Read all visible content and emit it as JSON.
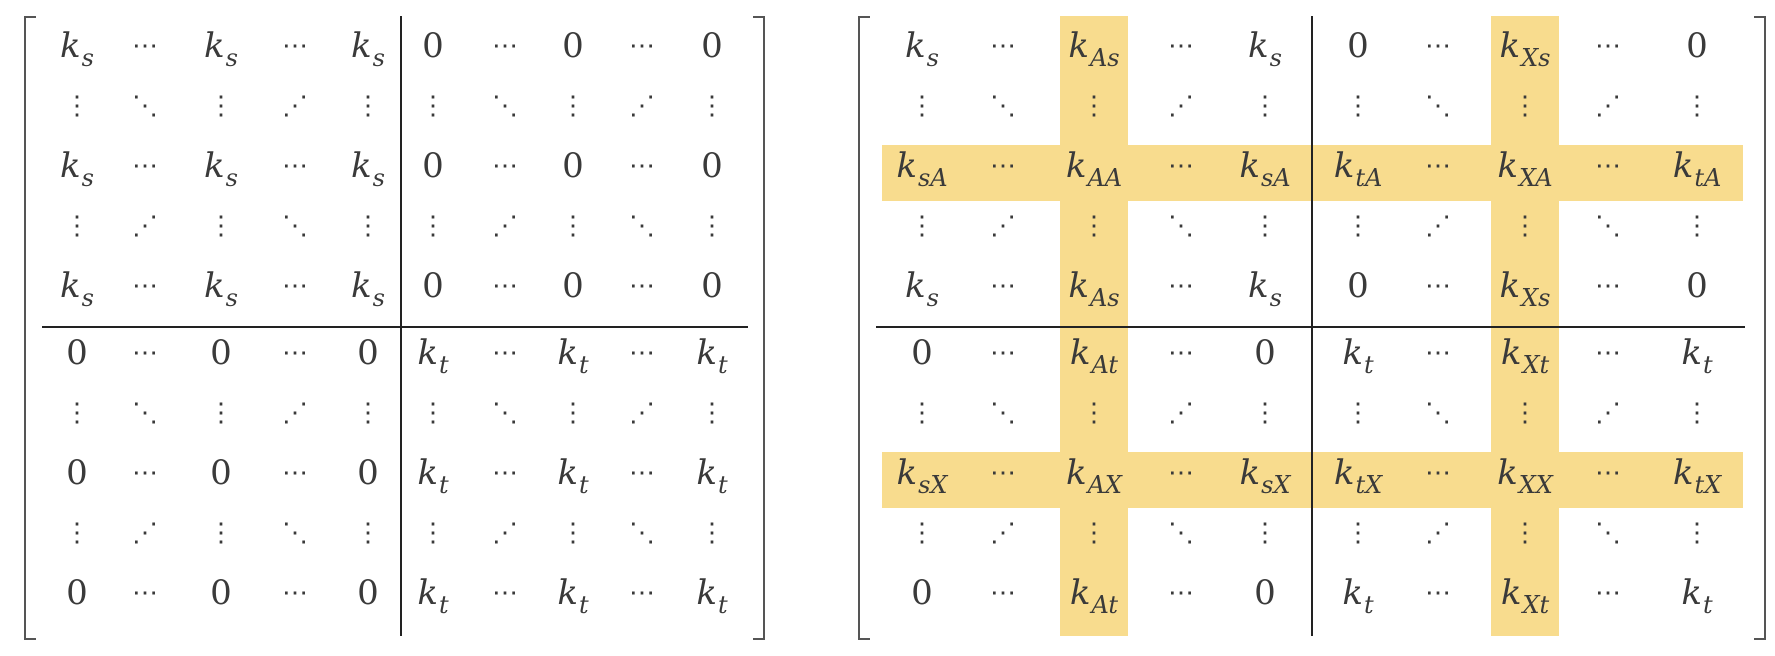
{
  "highlight_color": "#f8dc8e",
  "ink_color": "#3a3a3a",
  "matrices": [
    {
      "highlight_rows": [],
      "highlight_cols": [],
      "rows": [
        [
          [
            "k",
            "s"
          ],
          "h",
          [
            "k",
            "s"
          ],
          "h",
          [
            "k",
            "s"
          ],
          [
            "0",
            ""
          ],
          "h",
          [
            "0",
            ""
          ],
          "h",
          [
            "0",
            ""
          ]
        ],
        [
          "v",
          "d",
          "v",
          "a",
          "v",
          "v",
          "d",
          "v",
          "a",
          "v"
        ],
        [
          [
            "k",
            "s"
          ],
          "h",
          [
            "k",
            "s"
          ],
          "h",
          [
            "k",
            "s"
          ],
          [
            "0",
            ""
          ],
          "h",
          [
            "0",
            ""
          ],
          "h",
          [
            "0",
            ""
          ]
        ],
        [
          "v",
          "a",
          "v",
          "d",
          "v",
          "v",
          "a",
          "v",
          "d",
          "v"
        ],
        [
          [
            "k",
            "s"
          ],
          "h",
          [
            "k",
            "s"
          ],
          "h",
          [
            "k",
            "s"
          ],
          [
            "0",
            ""
          ],
          "h",
          [
            "0",
            ""
          ],
          "h",
          [
            "0",
            ""
          ]
        ],
        [
          [
            "0",
            ""
          ],
          "h",
          [
            "0",
            ""
          ],
          "h",
          [
            "0",
            ""
          ],
          [
            "k",
            "t"
          ],
          "h",
          [
            "k",
            "t"
          ],
          "h",
          [
            "k",
            "t"
          ]
        ],
        [
          "v",
          "d",
          "v",
          "a",
          "v",
          "v",
          "d",
          "v",
          "a",
          "v"
        ],
        [
          [
            "0",
            ""
          ],
          "h",
          [
            "0",
            ""
          ],
          "h",
          [
            "0",
            ""
          ],
          [
            "k",
            "t"
          ],
          "h",
          [
            "k",
            "t"
          ],
          "h",
          [
            "k",
            "t"
          ]
        ],
        [
          "v",
          "a",
          "v",
          "d",
          "v",
          "v",
          "a",
          "v",
          "d",
          "v"
        ],
        [
          [
            "0",
            ""
          ],
          "h",
          [
            "0",
            ""
          ],
          "h",
          [
            "0",
            ""
          ],
          [
            "k",
            "t"
          ],
          "h",
          [
            "k",
            "t"
          ],
          "h",
          [
            "k",
            "t"
          ]
        ]
      ]
    },
    {
      "highlight_rows": [
        2,
        7
      ],
      "highlight_cols": [
        2,
        7
      ],
      "rows": [
        [
          [
            "k",
            "s"
          ],
          "h",
          [
            "k",
            "As"
          ],
          "h",
          [
            "k",
            "s"
          ],
          [
            "0",
            ""
          ],
          "h",
          [
            "k",
            "Xs"
          ],
          "h",
          [
            "0",
            ""
          ]
        ],
        [
          "v",
          "d",
          "v",
          "a",
          "v",
          "v",
          "d",
          "v",
          "a",
          "v"
        ],
        [
          [
            "k",
            "sA"
          ],
          "h",
          [
            "k",
            "AA"
          ],
          "h",
          [
            "k",
            "sA"
          ],
          [
            "k",
            "tA"
          ],
          "h",
          [
            "k",
            "XA"
          ],
          "h",
          [
            "k",
            "tA"
          ]
        ],
        [
          "v",
          "a",
          "v",
          "d",
          "v",
          "v",
          "a",
          "v",
          "d",
          "v"
        ],
        [
          [
            "k",
            "s"
          ],
          "h",
          [
            "k",
            "As"
          ],
          "h",
          [
            "k",
            "s"
          ],
          [
            "0",
            ""
          ],
          "h",
          [
            "k",
            "Xs"
          ],
          "h",
          [
            "0",
            ""
          ]
        ],
        [
          [
            "0",
            ""
          ],
          "h",
          [
            "k",
            "At"
          ],
          "h",
          [
            "0",
            ""
          ],
          [
            "k",
            "t"
          ],
          "h",
          [
            "k",
            "Xt"
          ],
          "h",
          [
            "k",
            "t"
          ]
        ],
        [
          "v",
          "d",
          "v",
          "a",
          "v",
          "v",
          "d",
          "v",
          "a",
          "v"
        ],
        [
          [
            "k",
            "sX"
          ],
          "h",
          [
            "k",
            "AX"
          ],
          "h",
          [
            "k",
            "sX"
          ],
          [
            "k",
            "tX"
          ],
          "h",
          [
            "k",
            "XX"
          ],
          "h",
          [
            "k",
            "tX"
          ]
        ],
        [
          "v",
          "a",
          "v",
          "d",
          "v",
          "v",
          "a",
          "v",
          "d",
          "v"
        ],
        [
          [
            "0",
            ""
          ],
          "h",
          [
            "k",
            "At"
          ],
          "h",
          [
            "0",
            ""
          ],
          [
            "k",
            "t"
          ],
          "h",
          [
            "k",
            "Xt"
          ],
          "h",
          [
            "k",
            "t"
          ]
        ]
      ]
    }
  ]
}
